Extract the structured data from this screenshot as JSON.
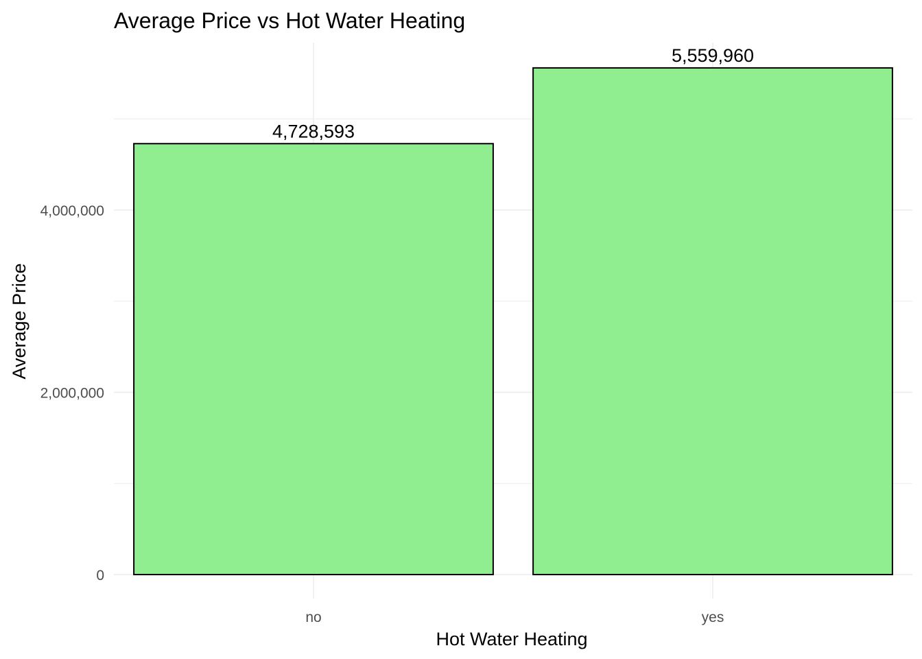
{
  "chart_data": {
    "type": "bar",
    "title": "Average Price vs Hot Water Heating",
    "xlabel": "Hot Water Heating",
    "ylabel": "Average Price",
    "categories": [
      "no",
      "yes"
    ],
    "values": [
      4728593,
      5559960
    ],
    "data_labels": [
      "4,728,593",
      "5,559,960"
    ],
    "y_ticks": [
      0,
      2000000,
      4000000
    ],
    "y_tick_labels": [
      "0",
      "2,000,000",
      "4,000,000"
    ],
    "ylim": [
      0,
      5837958
    ],
    "grid": true,
    "legend": "none",
    "bar_fill": "#90EE90",
    "bar_stroke": "#000000"
  }
}
